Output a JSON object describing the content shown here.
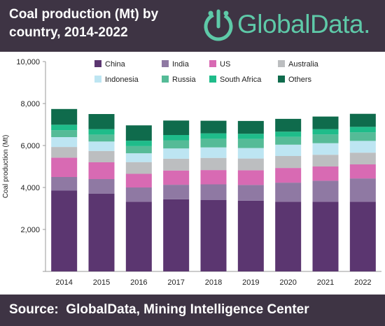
{
  "header": {
    "title": "Coal production (Mt) by country, 2014-2022",
    "logo_text": "GlobalData."
  },
  "footer": {
    "source": "Source:  GlobalData, Mining Intelligence Center"
  },
  "colors": {
    "header_bg": "#3e3444",
    "brand_green": "#5ec9a8"
  },
  "chart_data": {
    "type": "bar",
    "stacked": true,
    "title": "",
    "xlabel": "",
    "ylabel": "Coal production (Mt)",
    "ylim": [
      0,
      10000
    ],
    "yticks": [
      0,
      2000,
      4000,
      6000,
      8000,
      10000
    ],
    "ytick_labels": [
      "",
      "2,000",
      "4,000",
      "6,000",
      "8,000",
      "10,000"
    ],
    "grid": false,
    "legend_position": "top",
    "categories": [
      "2014",
      "2015",
      "2016",
      "2017",
      "2018",
      "2019",
      "2020",
      "2021",
      "2022"
    ],
    "series": [
      {
        "name": "China",
        "color": "#5b3670",
        "values": [
          3850,
          3700,
          3320,
          3440,
          3400,
          3370,
          3320,
          3320,
          3320
        ]
      },
      {
        "name": "India",
        "color": "#8f79a3",
        "values": [
          650,
          700,
          680,
          690,
          750,
          750,
          910,
          1000,
          1110
        ]
      },
      {
        "name": "US",
        "color": "#d86ab3",
        "values": [
          920,
          800,
          650,
          680,
          680,
          700,
          700,
          680,
          670
        ]
      },
      {
        "name": "Australia",
        "color": "#bcbec0",
        "values": [
          510,
          540,
          560,
          560,
          580,
          560,
          570,
          560,
          560
        ]
      },
      {
        "name": "Indonesia",
        "color": "#bde5f2",
        "values": [
          470,
          450,
          420,
          490,
          500,
          500,
          540,
          550,
          560
        ]
      },
      {
        "name": "Russia",
        "color": "#55bb97",
        "values": [
          330,
          330,
          340,
          390,
          410,
          430,
          370,
          420,
          410
        ]
      },
      {
        "name": "South Africa",
        "color": "#1fbc8a",
        "values": [
          260,
          260,
          260,
          250,
          260,
          250,
          250,
          250,
          260
        ]
      },
      {
        "name": "Others",
        "color": "#0f6b4c",
        "values": [
          750,
          720,
          730,
          690,
          600,
          610,
          610,
          600,
          620
        ]
      }
    ]
  }
}
